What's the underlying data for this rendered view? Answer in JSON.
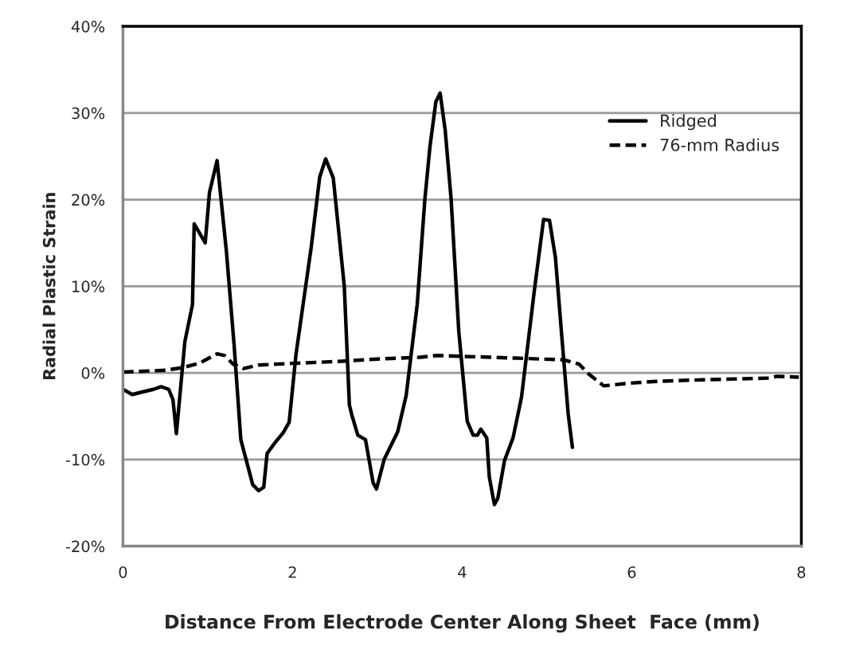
{
  "chart_data": {
    "type": "line",
    "xlabel": "Distance From Electrode Center Along Sheet  Face (mm)",
    "ylabel": "Radial Plastic Strain",
    "xlim": [
      0,
      8
    ],
    "xticks": [
      0,
      2,
      4,
      6,
      8
    ],
    "ylim": [
      -20,
      40
    ],
    "yticks": [
      {
        "value": -20,
        "label": "-20%"
      },
      {
        "value": -10,
        "label": "-10%"
      },
      {
        "value": 0,
        "label": "0%"
      },
      {
        "value": 10,
        "label": "10%"
      },
      {
        "value": 20,
        "label": "20%"
      },
      {
        "value": 30,
        "label": "30%"
      },
      {
        "value": 40,
        "label": "40%"
      }
    ],
    "grid": "y",
    "legend": "top right",
    "marker": "none",
    "series": [
      {
        "name": "Ridged",
        "color": "#000000",
        "line_style": "solid",
        "x": [
          0,
          0.11,
          0.23,
          0.36,
          0.45,
          0.54,
          0.59,
          0.63,
          0.73,
          0.82,
          0.84,
          0.97,
          1.02,
          1.11,
          1.22,
          1.31,
          1.39,
          1.53,
          1.6,
          1.66,
          1.7,
          1.79,
          1.89,
          1.96,
          2.04,
          2.22,
          2.32,
          2.39,
          2.48,
          2.61,
          2.67,
          2.7,
          2.77,
          2.86,
          2.95,
          2.99,
          3.08,
          3.24,
          3.34,
          3.47,
          3.56,
          3.62,
          3.69,
          3.74,
          3.8,
          3.87,
          3.96,
          4.06,
          4.13,
          4.18,
          4.22,
          4.29,
          4.32,
          4.38,
          4.42,
          4.5,
          4.6,
          4.7,
          4.85,
          4.96,
          5.03,
          5.1,
          5.17,
          5.25,
          5.3
        ],
        "values": [
          -1.9,
          -2.5,
          -2.2,
          -1.9,
          -1.6,
          -1.9,
          -3.1,
          -7.0,
          3.6,
          7.9,
          17.2,
          15.0,
          20.8,
          24.5,
          14.0,
          3.3,
          -7.7,
          -12.9,
          -13.6,
          -13.2,
          -9.3,
          -8.1,
          -6.9,
          -5.7,
          2.1,
          14.5,
          22.6,
          24.7,
          22.5,
          10.0,
          -3.7,
          -4.9,
          -7.2,
          -7.7,
          -12.7,
          -13.4,
          -10.0,
          -6.8,
          -2.6,
          7.9,
          20.0,
          26.1,
          31.3,
          32.3,
          28.0,
          20.0,
          4.8,
          -5.6,
          -7.2,
          -7.2,
          -6.5,
          -7.5,
          -12.0,
          -15.2,
          -14.5,
          -10.1,
          -7.5,
          -2.8,
          9.4,
          17.7,
          17.6,
          13.3,
          4.8,
          -4.7,
          -8.6
        ]
      },
      {
        "name": "76-mm Radius",
        "color": "#000000",
        "line_style": "dashed",
        "x": [
          0,
          0.5,
          0.7,
          0.9,
          1.11,
          1.2,
          1.3,
          1.42,
          1.6,
          2.0,
          2.5,
          3.0,
          3.5,
          3.7,
          4.03,
          4.64,
          5.2,
          5.38,
          5.49,
          5.67,
          5.96,
          6.25,
          6.83,
          7.62,
          7.71,
          7.97
        ],
        "values": [
          0.1,
          0.3,
          0.6,
          1.1,
          2.2,
          2.0,
          1.0,
          0.5,
          0.9,
          1.1,
          1.3,
          1.6,
          1.8,
          2.0,
          1.9,
          1.7,
          1.5,
          1.0,
          -0.1,
          -1.5,
          -1.2,
          -1.0,
          -0.8,
          -0.6,
          -0.4,
          -0.5
        ]
      }
    ]
  }
}
